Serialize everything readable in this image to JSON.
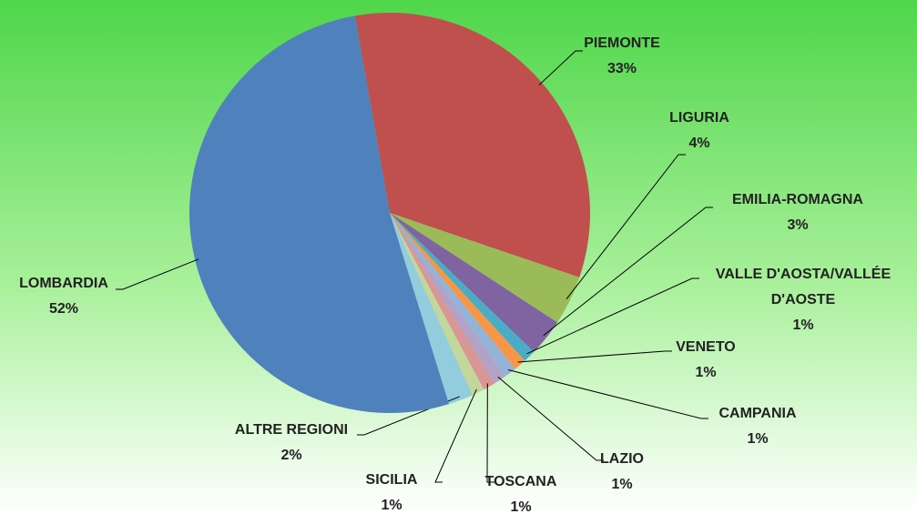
{
  "chart_data": {
    "type": "pie",
    "categories": [
      "PIEMONTE",
      "LIGURIA",
      "EMILIA-ROMAGNA",
      "VALLE D'AOSTA/VALLÉE D'AOSTE",
      "VENETO",
      "CAMPANIA",
      "LAZIO",
      "TOSCANA",
      "SICILIA",
      "ALTRE REGIONI",
      "LOMBARDIA"
    ],
    "values": [
      33,
      4,
      3,
      1,
      1,
      1,
      1,
      1,
      1,
      2,
      52
    ],
    "value_labels": [
      "33%",
      "4%",
      "3%",
      "1%",
      "1%",
      "1%",
      "1%",
      "1%",
      "1%",
      "2%",
      "52%"
    ],
    "colors": [
      "#c0504d",
      "#9bbb59",
      "#8064a2",
      "#4bacc6",
      "#f79646",
      "#95b3d7",
      "#b3a2c7",
      "#d99694",
      "#c3d69b",
      "#93cddd",
      "#4f81bd"
    ]
  }
}
